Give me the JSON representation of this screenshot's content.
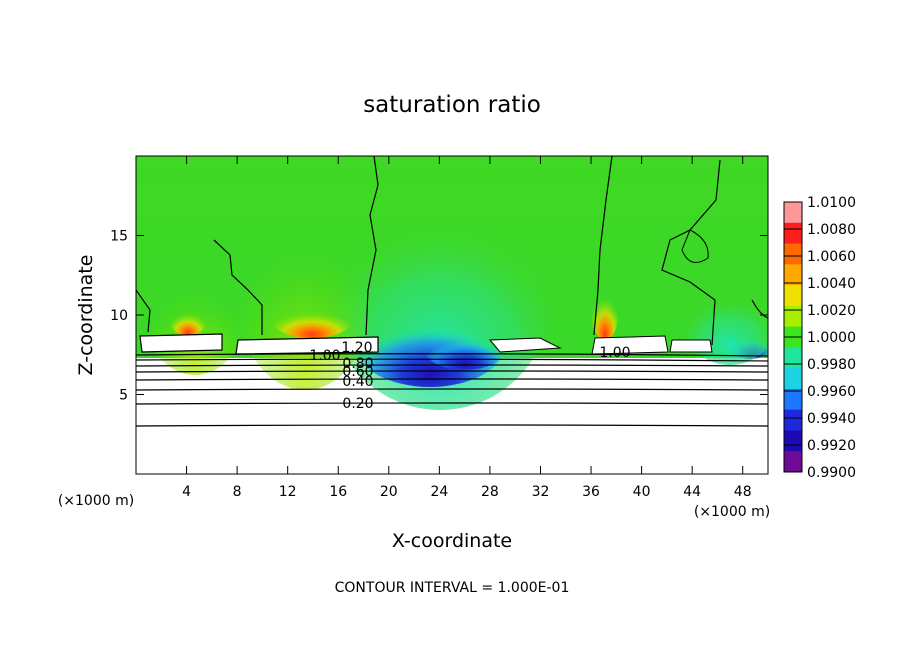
{
  "chart_data": {
    "type": "heatmap",
    "title": "saturation ratio",
    "xlabel": "X-coordinate",
    "ylabel": "Z-coordinate",
    "x_unit": "(×1000 m)",
    "y_unit": "(×1000 m)",
    "xlim": [
      0,
      50
    ],
    "ylim": [
      0,
      20
    ],
    "x_ticks": [
      4,
      8,
      12,
      16,
      20,
      24,
      28,
      32,
      36,
      40,
      44,
      48
    ],
    "y_ticks": [
      5,
      10,
      15
    ],
    "colorbar": {
      "min": 0.99,
      "max": 1.01,
      "labels": [
        "1.0100",
        "1.0080",
        "1.0060",
        "1.0040",
        "1.0020",
        "1.0000",
        "0.9980",
        "0.9960",
        "0.9940",
        "0.9920",
        "0.9900"
      ],
      "colors": [
        "#ff9898",
        "#ff1e1e",
        "#ff6a00",
        "#ffa800",
        "#f0e000",
        "#a8ee00",
        "#3ce61e",
        "#1ee6a0",
        "#1ed2e6",
        "#1e78ff",
        "#1e28dc",
        "#1e0ab4",
        "#6e0a96"
      ]
    },
    "contour_interval": "CONTOUR INTERVAL = 1.000E-01",
    "contour_labels": [
      "1.20",
      "1.00",
      "0.80",
      "0.60",
      "0.40",
      "0.20",
      "1.00"
    ],
    "contour_levels_lower": [
      0.2,
      0.4,
      0.6,
      0.8,
      1.0,
      1.2
    ]
  }
}
